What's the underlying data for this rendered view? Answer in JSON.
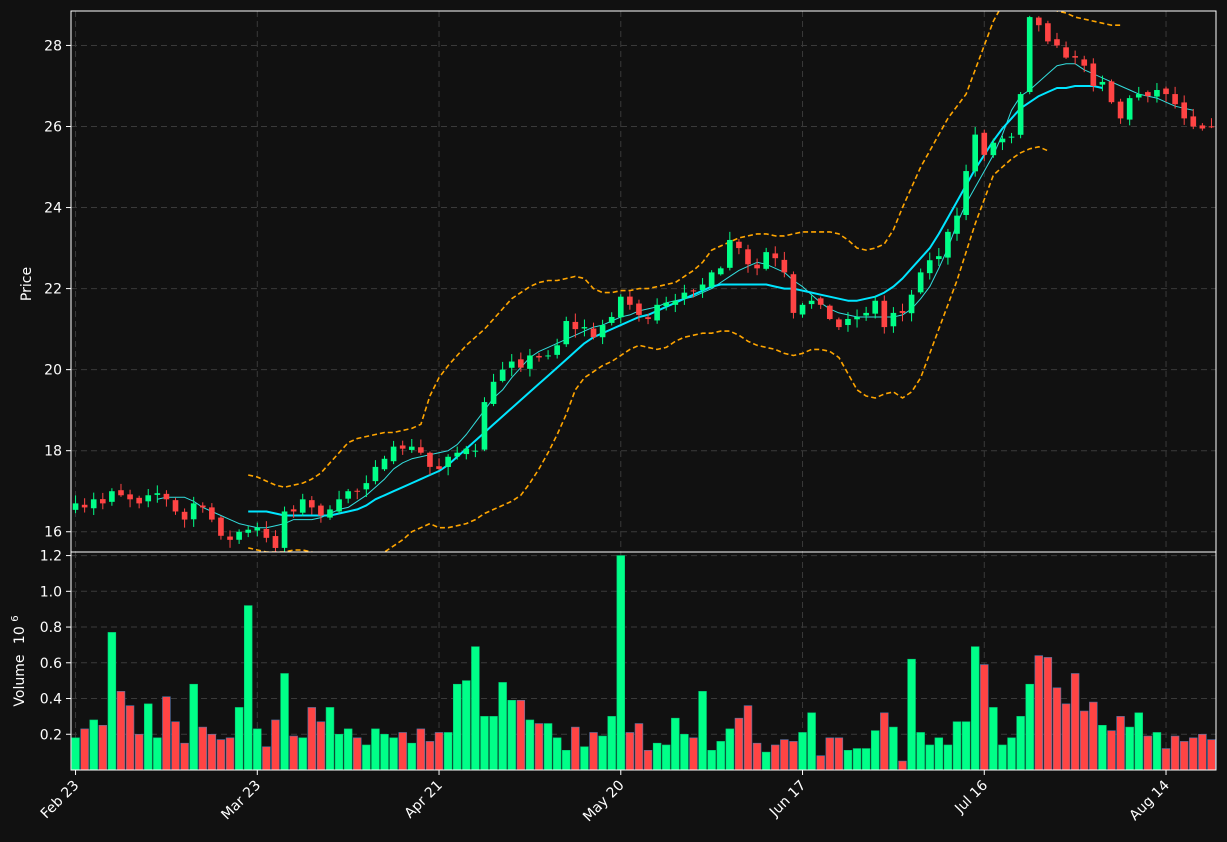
{
  "chart_data": {
    "type": "candlestick",
    "theme": {
      "background": "#111111",
      "grid": "#3a3a3a",
      "up": "#00ff88",
      "down": "#ff4444",
      "ma_fast": "#33dddd",
      "ma_slow": "#00e5ff",
      "bollinger": "#ffa500",
      "axis": "#ffffff"
    },
    "price_panel": {
      "ylabel": "Price",
      "ylim": [
        15.5,
        28.85
      ],
      "yticks": [
        16,
        18,
        20,
        22,
        24,
        26,
        28
      ]
    },
    "volume_panel": {
      "ylabel": "Volume",
      "ylabel_exponent": "10",
      "ylabel_exponent_power": "6",
      "ylim": [
        0,
        1.22
      ],
      "yticks": [
        "0.2",
        "0.4",
        "0.6",
        "0.8",
        "1.0",
        "1.2"
      ]
    },
    "x_tick_labels": [
      {
        "index": 0,
        "label": "Feb 23"
      },
      {
        "index": 20,
        "label": "Mar 23"
      },
      {
        "index": 40,
        "label": "Apr 21"
      },
      {
        "index": 60,
        "label": "May 20"
      },
      {
        "index": 80,
        "label": "Jun 17"
      },
      {
        "index": 100,
        "label": "Jul 16"
      },
      {
        "index": 120,
        "label": "Aug 14"
      }
    ],
    "close": [
      16.7,
      16.6,
      16.8,
      16.7,
      17.0,
      16.9,
      16.8,
      16.7,
      16.9,
      16.95,
      16.8,
      16.5,
      16.3,
      16.7,
      16.6,
      16.3,
      15.9,
      15.8,
      16.0,
      16.05,
      16.1,
      15.85,
      15.6,
      16.5,
      16.5,
      16.8,
      16.6,
      16.4,
      16.55,
      16.8,
      17.0,
      17.0,
      17.2,
      17.6,
      17.8,
      18.1,
      18.05,
      18.1,
      17.95,
      17.6,
      17.55,
      17.85,
      17.95,
      18.05,
      18.0,
      19.2,
      19.7,
      20.0,
      20.2,
      20.05,
      20.35,
      20.3,
      20.35,
      20.6,
      21.2,
      21.0,
      21.05,
      20.8,
      21.1,
      21.3,
      21.8,
      21.6,
      21.35,
      21.25,
      21.6,
      21.65,
      21.7,
      21.9,
      21.95,
      22.1,
      22.4,
      22.5,
      23.2,
      23.0,
      22.6,
      22.5,
      22.9,
      22.75,
      22.4,
      21.4,
      21.6,
      21.7,
      21.6,
      21.25,
      21.05,
      21.25,
      21.3,
      21.4,
      21.7,
      21.05,
      21.4,
      21.4,
      21.85,
      22.4,
      22.7,
      22.8,
      23.4,
      23.8,
      24.9,
      25.8,
      25.3,
      25.6,
      25.7,
      25.75,
      26.8,
      28.7,
      28.5,
      28.1,
      28.0,
      27.7,
      27.7,
      27.5,
      27.0,
      27.1,
      26.6,
      26.2,
      26.7,
      26.8,
      26.75,
      26.9,
      26.8,
      26.55,
      26.2,
      26.0,
      25.95,
      26.0
    ],
    "ma_fast": [
      null,
      null,
      null,
      null,
      null,
      null,
      null,
      null,
      null,
      16.8,
      16.85,
      16.85,
      16.85,
      16.75,
      16.6,
      16.5,
      16.4,
      16.3,
      16.2,
      16.15,
      16.1,
      16.1,
      16.15,
      16.2,
      16.3,
      16.3,
      16.3,
      16.35,
      16.45,
      16.55,
      16.6,
      16.75,
      16.9,
      17.1,
      17.3,
      17.55,
      17.7,
      17.8,
      17.85,
      17.9,
      17.95,
      18.0,
      18.15,
      18.4,
      18.7,
      19.0,
      19.3,
      19.5,
      19.8,
      20.05,
      20.3,
      20.45,
      20.55,
      20.65,
      20.75,
      20.85,
      20.95,
      21.05,
      21.1,
      21.2,
      21.3,
      21.35,
      21.45,
      21.5,
      21.55,
      21.65,
      21.7,
      21.75,
      21.8,
      21.9,
      22.0,
      22.15,
      22.3,
      22.45,
      22.55,
      22.65,
      22.6,
      22.5,
      22.4,
      22.2,
      22.05,
      21.85,
      21.65,
      21.5,
      21.4,
      21.35,
      21.3,
      21.3,
      21.3,
      21.3,
      21.3,
      21.35,
      21.5,
      21.75,
      22.05,
      22.5,
      23.0,
      23.6,
      24.1,
      24.5,
      24.9,
      25.3,
      25.8,
      26.4,
      26.75,
      26.9,
      27.1,
      27.3,
      27.5,
      27.55,
      27.55,
      27.4,
      27.3,
      27.2,
      27.1,
      27.0,
      26.9,
      26.8,
      26.75,
      26.7,
      26.6,
      26.5,
      26.45,
      26.4
    ],
    "ma_slow": [
      null,
      null,
      null,
      null,
      null,
      null,
      null,
      null,
      null,
      null,
      null,
      null,
      null,
      null,
      null,
      null,
      null,
      null,
      null,
      16.5,
      16.5,
      16.5,
      16.45,
      16.4,
      16.4,
      16.4,
      16.4,
      16.4,
      16.4,
      16.45,
      16.5,
      16.55,
      16.65,
      16.8,
      16.9,
      17.0,
      17.1,
      17.2,
      17.3,
      17.4,
      17.5,
      17.65,
      17.85,
      18.05,
      18.25,
      18.45,
      18.65,
      18.85,
      19.05,
      19.25,
      19.45,
      19.65,
      19.85,
      20.05,
      20.25,
      20.45,
      20.65,
      20.8,
      20.9,
      21.0,
      21.1,
      21.2,
      21.3,
      21.35,
      21.45,
      21.55,
      21.65,
      21.75,
      21.85,
      21.95,
      22.05,
      22.1,
      22.1,
      22.1,
      22.1,
      22.1,
      22.1,
      22.05,
      22.0,
      22.0,
      21.95,
      21.9,
      21.85,
      21.8,
      21.75,
      21.7,
      21.7,
      21.75,
      21.8,
      21.9,
      22.05,
      22.25,
      22.5,
      22.75,
      23.0,
      23.35,
      23.75,
      24.15,
      24.55,
      24.95,
      25.3,
      25.65,
      25.95,
      26.2,
      26.45,
      26.6,
      26.75,
      26.85,
      26.95,
      26.95,
      27.0,
      27.0,
      27.0,
      26.95
    ],
    "bb_upper": [
      null,
      null,
      null,
      null,
      null,
      null,
      null,
      null,
      null,
      null,
      null,
      null,
      null,
      null,
      null,
      null,
      null,
      null,
      null,
      17.4,
      17.35,
      17.25,
      17.15,
      17.1,
      17.15,
      17.2,
      17.3,
      17.45,
      17.7,
      17.95,
      18.2,
      18.3,
      18.35,
      18.4,
      18.45,
      18.45,
      18.5,
      18.55,
      18.65,
      19.35,
      19.8,
      20.1,
      20.35,
      20.6,
      20.8,
      21.0,
      21.25,
      21.5,
      21.75,
      21.9,
      22.05,
      22.15,
      22.2,
      22.2,
      22.25,
      22.3,
      22.25,
      22.0,
      21.9,
      21.9,
      21.95,
      21.95,
      22.0,
      22.0,
      22.05,
      22.1,
      22.15,
      22.3,
      22.45,
      22.65,
      22.95,
      23.05,
      23.15,
      23.25,
      23.3,
      23.35,
      23.35,
      23.3,
      23.3,
      23.35,
      23.4,
      23.4,
      23.4,
      23.4,
      23.35,
      23.2,
      23.0,
      22.95,
      23.0,
      23.1,
      23.45,
      24.0,
      24.5,
      25.0,
      25.4,
      25.8,
      26.2,
      26.5,
      26.8,
      27.4,
      28.0,
      28.6,
      29.0,
      29.2,
      29.3,
      29.3,
      29.2,
      29.0,
      28.85,
      28.8,
      28.7,
      28.65,
      28.6,
      28.55,
      28.5,
      28.5
    ],
    "bb_lower": [
      null,
      null,
      null,
      null,
      null,
      null,
      null,
      null,
      null,
      null,
      null,
      null,
      null,
      null,
      null,
      null,
      null,
      null,
      null,
      15.6,
      15.55,
      15.5,
      15.5,
      15.5,
      15.55,
      15.55,
      15.5,
      15.45,
      15.4,
      15.3,
      15.2,
      15.15,
      15.25,
      15.35,
      15.5,
      15.65,
      15.8,
      16.0,
      16.1,
      16.2,
      16.1,
      16.1,
      16.15,
      16.2,
      16.3,
      16.45,
      16.55,
      16.65,
      16.75,
      16.9,
      17.2,
      17.55,
      17.95,
      18.4,
      18.9,
      19.5,
      19.8,
      19.95,
      20.1,
      20.2,
      20.35,
      20.5,
      20.6,
      20.55,
      20.5,
      20.55,
      20.7,
      20.8,
      20.85,
      20.9,
      20.9,
      20.95,
      20.95,
      20.85,
      20.7,
      20.6,
      20.55,
      20.5,
      20.4,
      20.35,
      20.4,
      20.5,
      20.5,
      20.45,
      20.3,
      19.9,
      19.5,
      19.35,
      19.3,
      19.4,
      19.45,
      19.3,
      19.45,
      19.8,
      20.4,
      21.0,
      21.6,
      22.2,
      22.9,
      23.6,
      24.2,
      24.8,
      25.0,
      25.2,
      25.35,
      25.45,
      25.5,
      25.4
    ],
    "volume": [
      0.18,
      0.23,
      0.28,
      0.25,
      0.77,
      0.44,
      0.36,
      0.2,
      0.37,
      0.18,
      0.41,
      0.27,
      0.15,
      0.48,
      0.24,
      0.2,
      0.17,
      0.18,
      0.35,
      0.92,
      0.23,
      0.13,
      0.28,
      0.54,
      0.19,
      0.18,
      0.35,
      0.27,
      0.35,
      0.2,
      0.23,
      0.18,
      0.14,
      0.23,
      0.2,
      0.18,
      0.21,
      0.15,
      0.23,
      0.16,
      0.21,
      0.21,
      0.48,
      0.5,
      0.69,
      0.3,
      0.3,
      0.49,
      0.39,
      0.39,
      0.28,
      0.26,
      0.26,
      0.18,
      0.11,
      0.24,
      0.13,
      0.21,
      0.19,
      0.3,
      1.2,
      0.21,
      0.26,
      0.11,
      0.15,
      0.14,
      0.29,
      0.2,
      0.18,
      0.44,
      0.11,
      0.16,
      0.23,
      0.29,
      0.36,
      0.15,
      0.1,
      0.14,
      0.17,
      0.16,
      0.21,
      0.32,
      0.08,
      0.18,
      0.18,
      0.11,
      0.12,
      0.12,
      0.22,
      0.32,
      0.24,
      0.05,
      0.62,
      0.21,
      0.14,
      0.18,
      0.14,
      0.27,
      0.27,
      0.69,
      0.59,
      0.35,
      0.14,
      0.18,
      0.3,
      0.48,
      0.64,
      0.63,
      0.46,
      0.37,
      0.54,
      0.33,
      0.38,
      0.25,
      0.22,
      0.3,
      0.24,
      0.32,
      0.19,
      0.21,
      0.12,
      0.19,
      0.16,
      0.18,
      0.2,
      0.17
    ]
  }
}
